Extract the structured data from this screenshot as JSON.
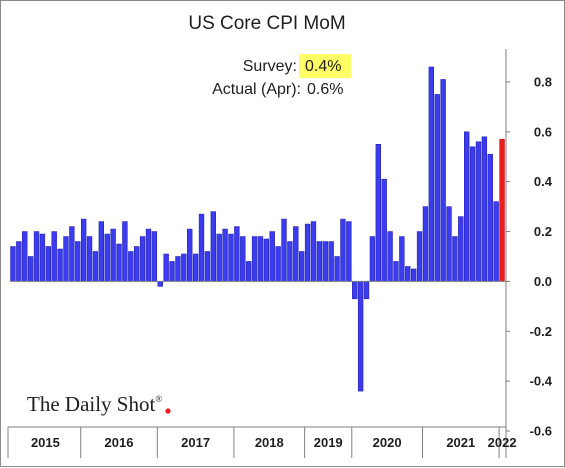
{
  "chart_data": {
    "type": "bar",
    "title": "US Core CPI MoM",
    "xlabel": "",
    "ylabel": "",
    "ylim": [
      -0.6,
      0.9
    ],
    "yticks": [
      -0.6,
      -0.4,
      -0.2,
      0.0,
      0.2,
      0.4,
      0.6,
      0.8
    ],
    "ytick_labels": [
      "-0.6",
      "-0.4",
      "-0.2",
      "0.0",
      "0.2",
      "0.4",
      "0.6",
      "0.8"
    ],
    "grid": false,
    "colors": {
      "bars": "#3b3bf0",
      "latest": "#ee1c1c",
      "highlight": "#ffff66"
    },
    "year_labels": [
      "2015",
      "2016",
      "2017",
      "2018",
      "2019",
      "2020",
      "2021",
      "2022"
    ],
    "series": [
      {
        "values": [
          0.14,
          0.16,
          0.2,
          0.1,
          0.2,
          0.19,
          0.14,
          0.2,
          0.13,
          0.18,
          0.22,
          0.16,
          0.25,
          0.18,
          0.12,
          0.24,
          0.19,
          0.21,
          0.15,
          0.24,
          0.12,
          0.14,
          0.18,
          0.21,
          0.2,
          -0.02,
          0.11,
          0.08,
          0.1,
          0.11,
          0.21,
          0.11,
          0.27,
          0.12,
          0.28,
          0.19,
          0.21,
          0.19,
          0.22,
          0.18,
          0.08,
          0.18,
          0.18,
          0.17,
          0.2,
          0.14,
          0.25,
          0.16,
          0.22,
          0.12,
          0.23,
          0.24,
          0.16,
          0.16,
          0.16,
          0.1,
          0.25,
          0.24,
          -0.07,
          -0.44,
          -0.07,
          0.18,
          0.55,
          0.41,
          0.2,
          0.08,
          0.18,
          0.06,
          0.05,
          0.2,
          0.3,
          0.86,
          0.75,
          0.81,
          0.3,
          0.18,
          0.26,
          0.6,
          0.54,
          0.56,
          0.58,
          0.51,
          0.32,
          0.57
        ]
      }
    ],
    "annotations": {
      "survey_label": "Survey:",
      "survey_value": "0.4%",
      "actual_label": "Actual (Apr):",
      "actual_value": "0.6%"
    },
    "logo_text": "The Daily Shot",
    "logo_mark": "®"
  }
}
